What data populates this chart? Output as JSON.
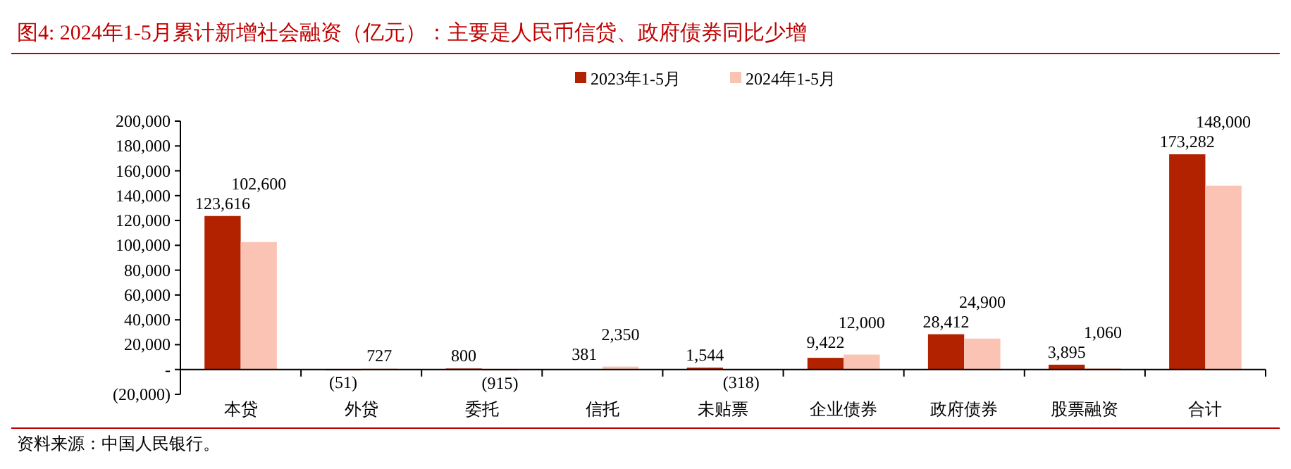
{
  "chart_data": {
    "type": "bar",
    "title": "图4:  2024年1-5月累计新增社会融资（亿元）：主要是人民币信贷、政府债券同比少增",
    "categories": [
      "本贷",
      "外贷",
      "委托",
      "信托",
      "未贴票",
      "企业债券",
      "政府债券",
      "股票融资",
      "合计"
    ],
    "series": [
      {
        "name": "2023年1-5月",
        "color": "#b22200",
        "values": [
          123616,
          -51,
          800,
          381,
          1544,
          9422,
          28412,
          3895,
          173282
        ],
        "value_labels": [
          "123,616",
          "(51)",
          "800",
          "381",
          "1,544",
          "9,422",
          "28,412",
          "3,895",
          "173,282"
        ]
      },
      {
        "name": "2024年1-5月",
        "color": "#fbc3b3",
        "values": [
          102600,
          727,
          -915,
          2350,
          -318,
          12000,
          24900,
          1060,
          148000
        ],
        "value_labels": [
          "102,600",
          "727",
          "(915)",
          "2,350",
          "(318)",
          "12,000",
          "24,900",
          "1,060",
          "148,000"
        ]
      }
    ],
    "ylim": [
      -20000,
      200000
    ],
    "yticks": [
      {
        "value": -20000,
        "label": "(20,000)"
      },
      {
        "value": 0,
        "label": "-"
      },
      {
        "value": 20000,
        "label": "20,000"
      },
      {
        "value": 40000,
        "label": "40,000"
      },
      {
        "value": 60000,
        "label": "60,000"
      },
      {
        "value": 80000,
        "label": "80,000"
      },
      {
        "value": 100000,
        "label": "100,000"
      },
      {
        "value": 120000,
        "label": "120,000"
      },
      {
        "value": 140000,
        "label": "140,000"
      },
      {
        "value": 160000,
        "label": "160,000"
      },
      {
        "value": 180000,
        "label": "180,000"
      },
      {
        "value": 200000,
        "label": "200,000"
      }
    ],
    "legend": "top",
    "annotations": [
      "资料来源：中国人民银行。"
    ]
  }
}
